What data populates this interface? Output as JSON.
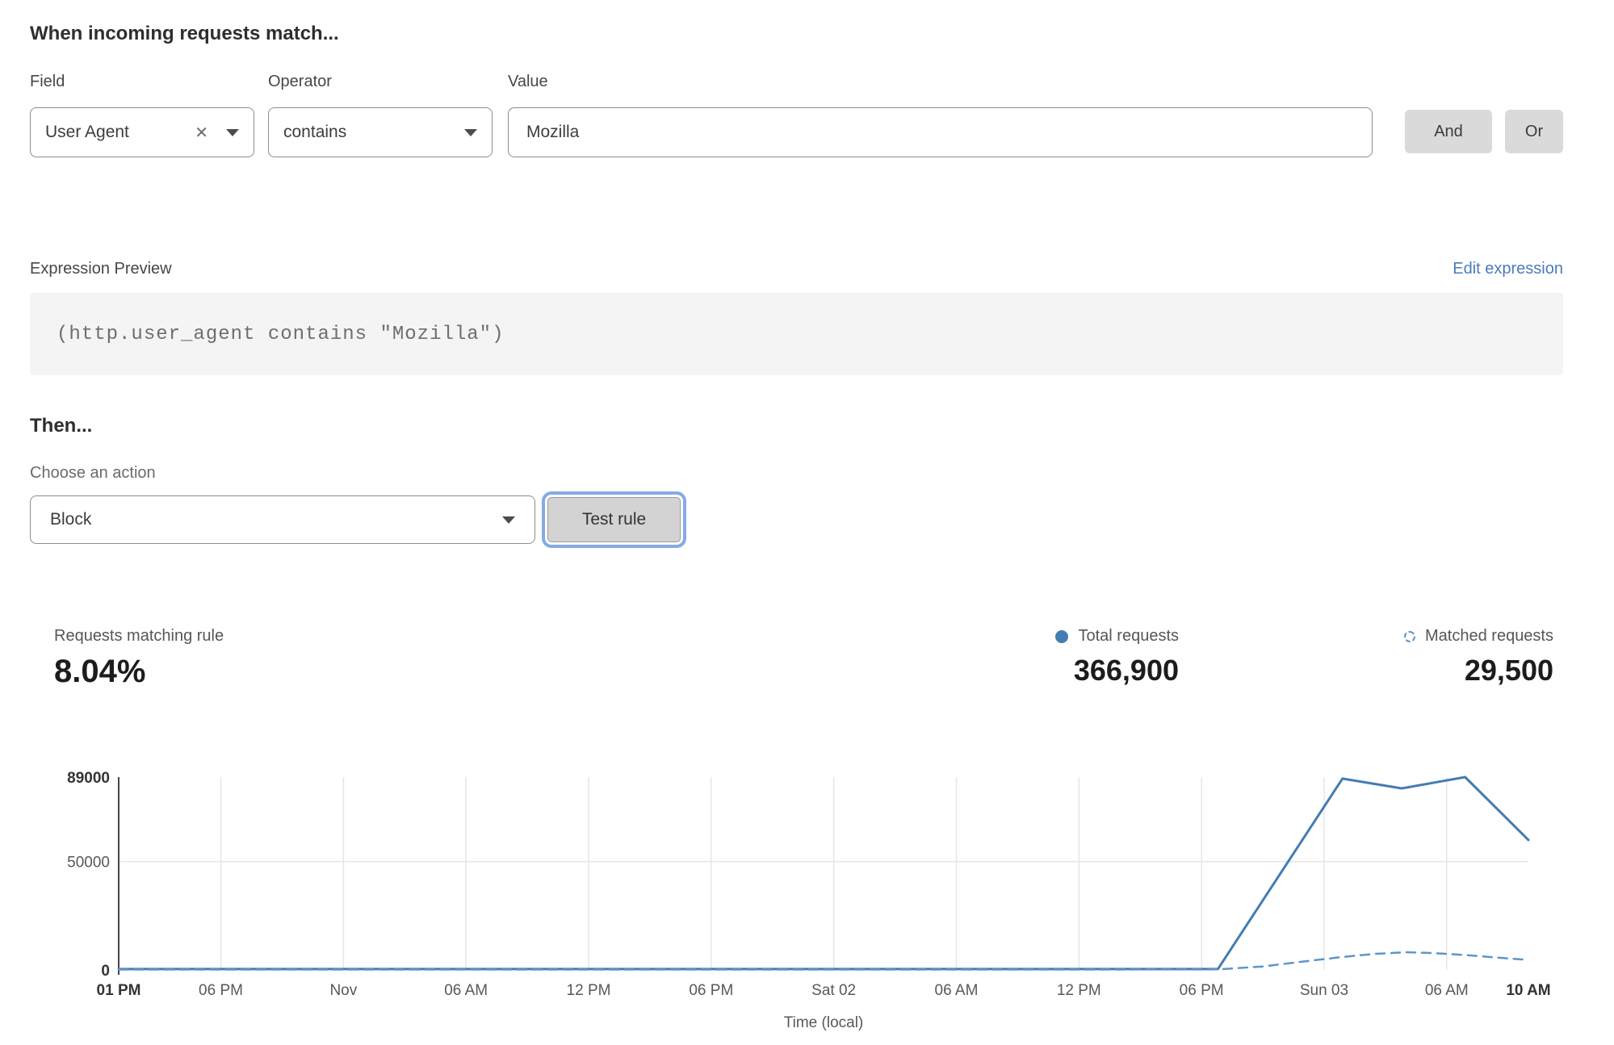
{
  "rule_builder": {
    "heading": "When incoming requests match...",
    "field": {
      "label": "Field",
      "value": "User Agent"
    },
    "operator": {
      "label": "Operator",
      "value": "contains"
    },
    "value": {
      "label": "Value",
      "value": "Mozilla"
    },
    "and_label": "And",
    "or_label": "Or"
  },
  "expression": {
    "label": "Expression Preview",
    "edit_link": "Edit expression",
    "code": "(http.user_agent contains \"Mozilla\")"
  },
  "action": {
    "heading": "Then...",
    "label": "Choose an action",
    "selected": "Block",
    "test_button": "Test rule"
  },
  "stats": {
    "matching": {
      "label": "Requests matching rule",
      "value": "8.04%"
    },
    "total": {
      "label": "Total requests",
      "value": "366,900"
    },
    "matched": {
      "label": "Matched requests",
      "value": "29,500"
    }
  },
  "chart_data": {
    "type": "line",
    "xlabel": "Time (local)",
    "x_unit": "hours since Fri 01 PM",
    "x_domain_labels": [
      "Fri 01 PM",
      "Sun 10 AM"
    ],
    "x_range": [
      0,
      69
    ],
    "ylim": [
      0,
      89000
    ],
    "grid": {
      "vertical": true,
      "horizontal_at": [
        50000
      ]
    },
    "colors": {
      "total_line": "#447cb1",
      "matched_line": "#5f95c8",
      "gridline": "#e6e6e6",
      "axis": "#454545",
      "tick_text": "#585858",
      "tick_text_bold": "#333333"
    },
    "yticks": [
      {
        "value": 0,
        "label": "0",
        "bold": true
      },
      {
        "value": 50000,
        "label": "50000",
        "bold": false
      },
      {
        "value": 89000,
        "label": "89000",
        "bold": true
      }
    ],
    "xticks": [
      {
        "h": 0,
        "label": "01 PM",
        "bold": true
      },
      {
        "h": 5,
        "label": "06 PM",
        "bold": false
      },
      {
        "h": 11,
        "label": "Nov",
        "bold": false
      },
      {
        "h": 17,
        "label": "06 AM",
        "bold": false
      },
      {
        "h": 23,
        "label": "12 PM",
        "bold": false
      },
      {
        "h": 29,
        "label": "06 PM",
        "bold": false
      },
      {
        "h": 35,
        "label": "Sat 02",
        "bold": false
      },
      {
        "h": 41,
        "label": "06 AM",
        "bold": false
      },
      {
        "h": 47,
        "label": "12 PM",
        "bold": false
      },
      {
        "h": 53,
        "label": "06 PM",
        "bold": false
      },
      {
        "h": 59,
        "label": "Sun 03",
        "bold": false
      },
      {
        "h": 65,
        "label": "06 AM",
        "bold": false
      },
      {
        "h": 69,
        "label": "10 AM",
        "bold": true
      }
    ],
    "series": [
      {
        "name": "Total requests",
        "style": "solid",
        "color": "#447cb1",
        "points": [
          [
            0,
            400
          ],
          [
            6,
            400
          ],
          [
            12,
            400
          ],
          [
            18,
            400
          ],
          [
            24,
            400
          ],
          [
            30,
            400
          ],
          [
            36,
            400
          ],
          [
            42,
            400
          ],
          [
            48,
            400
          ],
          [
            53.8,
            400
          ],
          [
            59.9,
            88300
          ],
          [
            62.8,
            83800
          ],
          [
            65.9,
            89000
          ],
          [
            69,
            60000
          ]
        ]
      },
      {
        "name": "Matched requests",
        "style": "dashed",
        "color": "#5f95c8",
        "points": [
          [
            0,
            200
          ],
          [
            6,
            200
          ],
          [
            12,
            200
          ],
          [
            18,
            200
          ],
          [
            24,
            200
          ],
          [
            30,
            200
          ],
          [
            36,
            200
          ],
          [
            42,
            200
          ],
          [
            48,
            200
          ],
          [
            53.8,
            250
          ],
          [
            56,
            1600
          ],
          [
            58,
            3900
          ],
          [
            59.9,
            6000
          ],
          [
            61.5,
            7400
          ],
          [
            63,
            8200
          ],
          [
            64.5,
            7700
          ],
          [
            65.9,
            6900
          ],
          [
            67.5,
            5700
          ],
          [
            69,
            4600
          ]
        ]
      }
    ]
  }
}
